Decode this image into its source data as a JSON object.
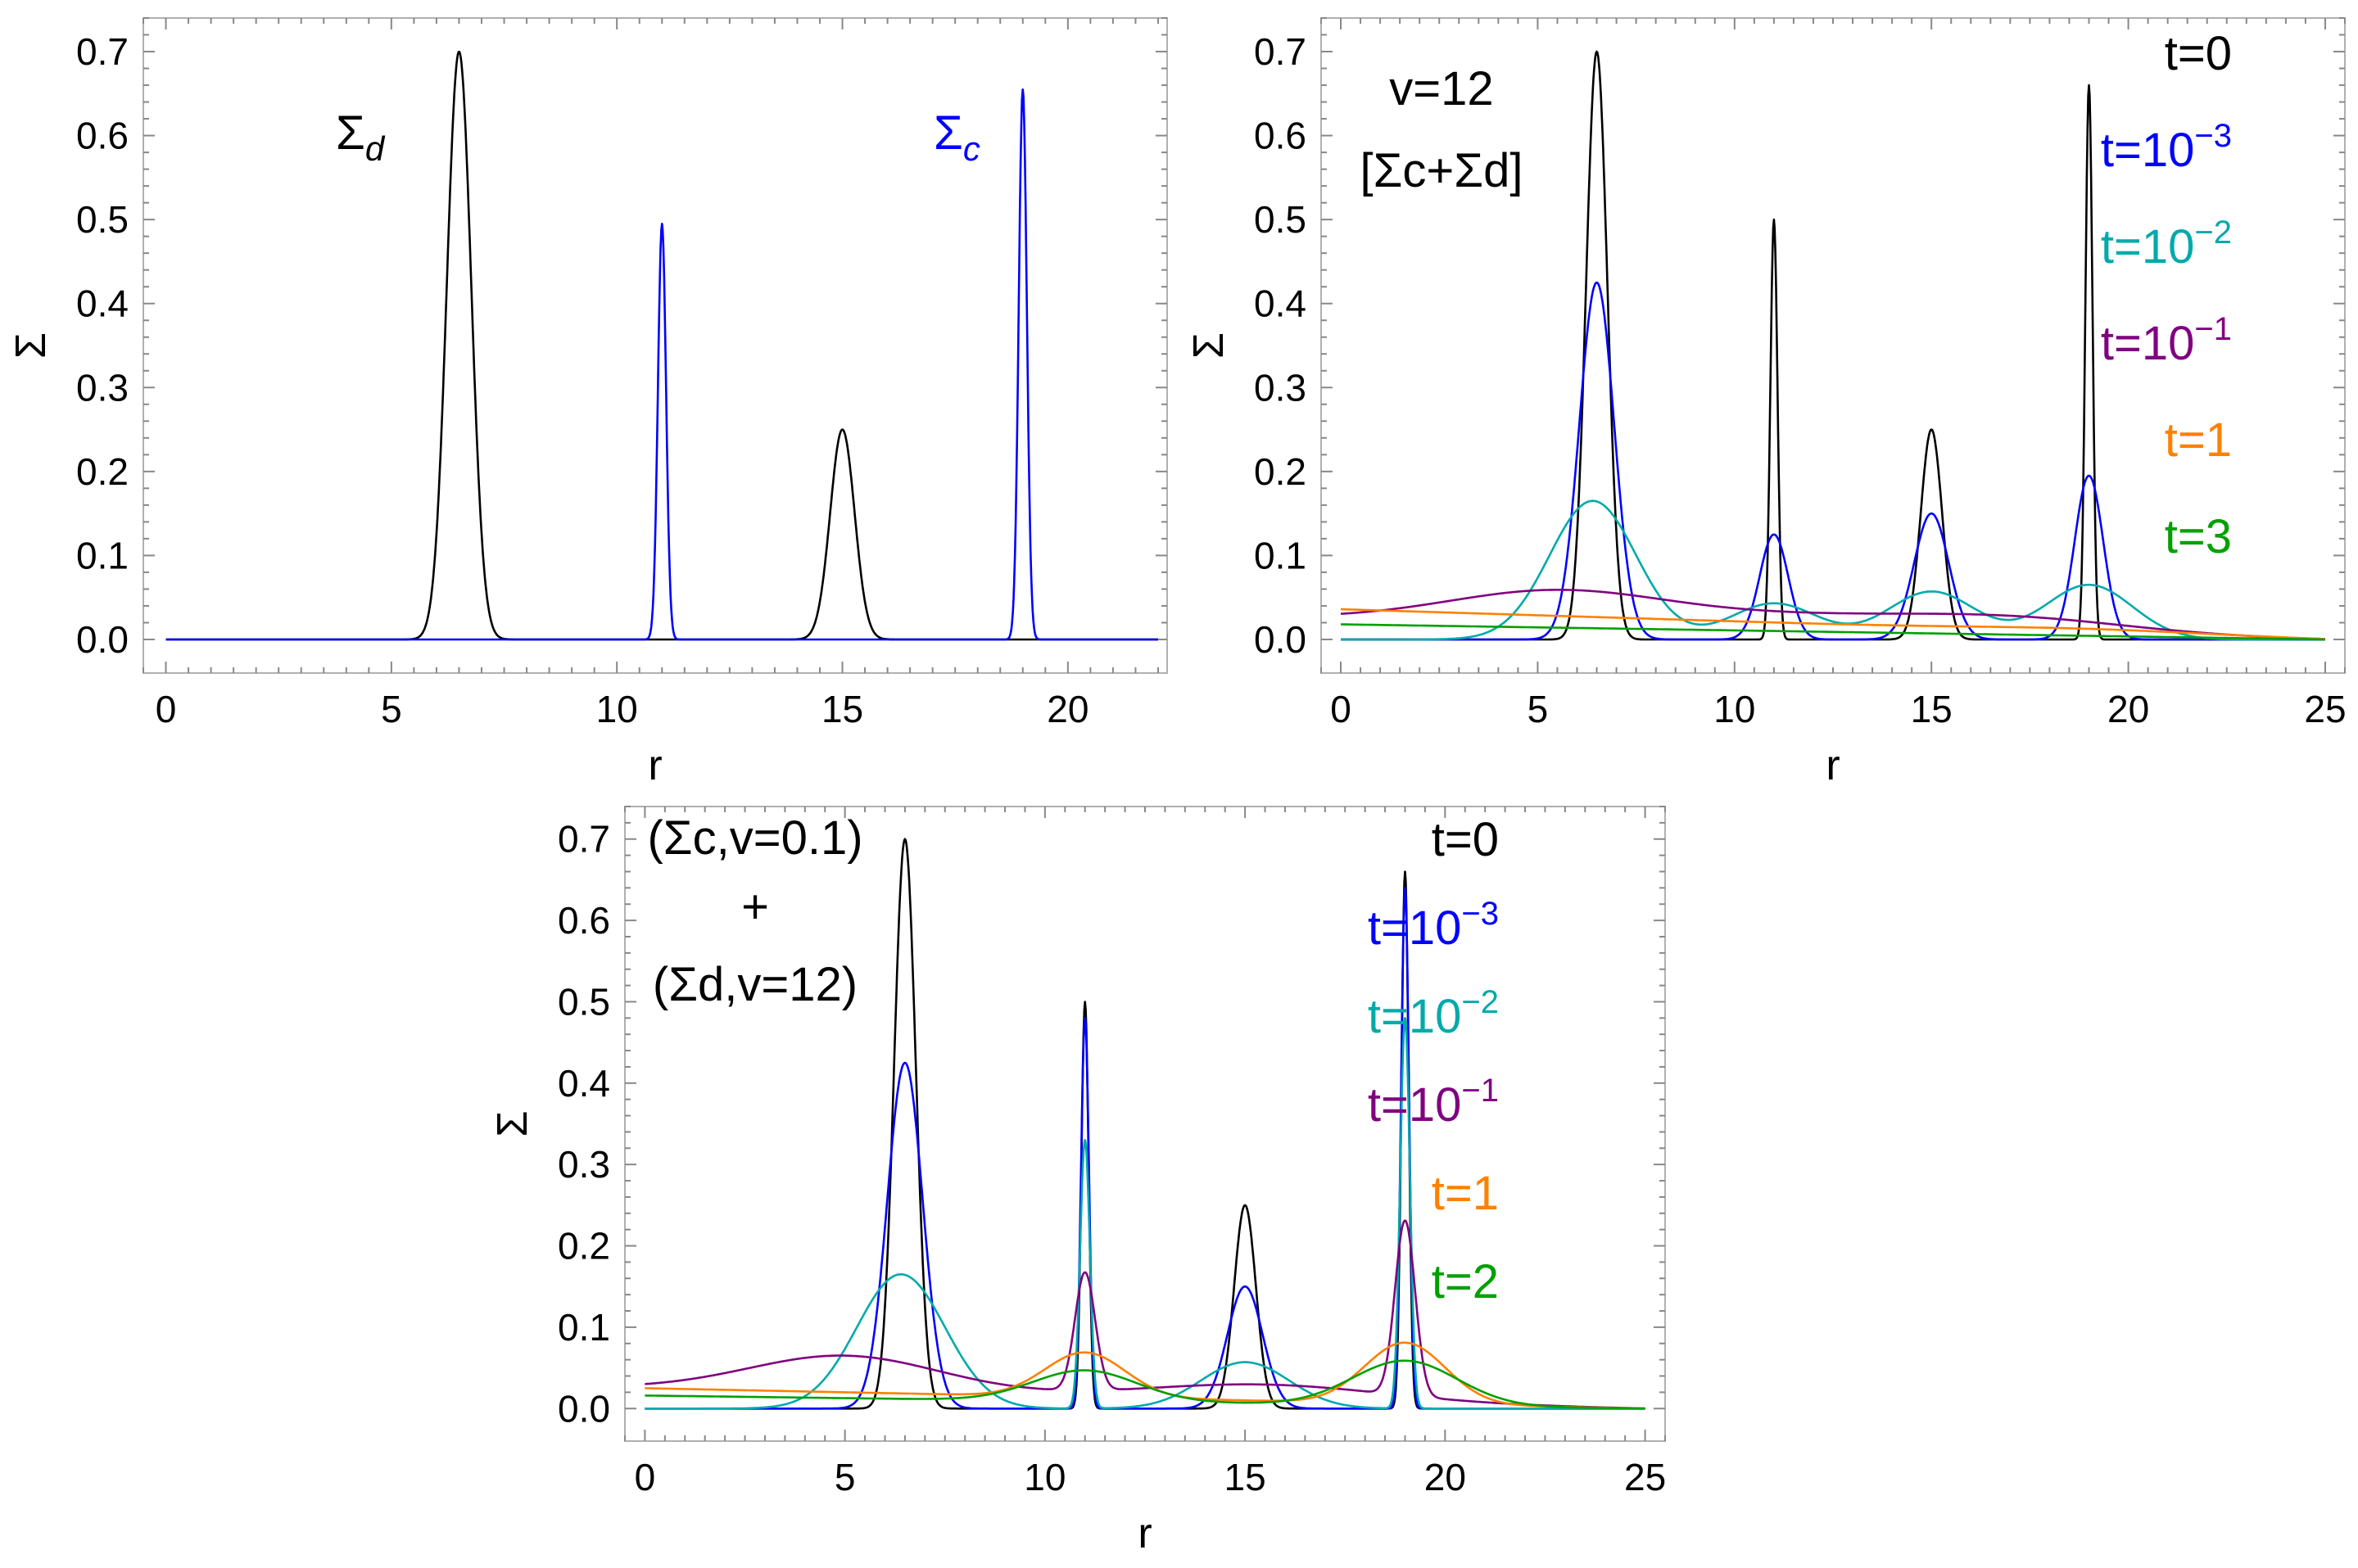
{
  "chart_data": [
    {
      "id": "panel-a",
      "type": "line",
      "xlabel": "r",
      "ylabel": "Σ",
      "xlim": [
        -0.5,
        22.2
      ],
      "ylim": [
        -0.04,
        0.74
      ],
      "xticks": [
        0,
        5,
        10,
        15,
        20
      ],
      "yticks": [
        0.0,
        0.1,
        0.2,
        0.3,
        0.4,
        0.5,
        0.6,
        0.7
      ],
      "grid": false,
      "annotations": [
        {
          "base": "Σ",
          "sub": "d",
          "color": "#000000"
        },
        {
          "base": "Σ",
          "sub": "c",
          "color": "#0000ff"
        }
      ],
      "series": [
        {
          "name": "Σd",
          "color": "#000000",
          "x_range": [
            0,
            22
          ],
          "peaks": [
            {
              "center": 6.5,
              "height": 0.7,
              "width": 0.27
            },
            {
              "center": 15.0,
              "height": 0.25,
              "width": 0.27
            }
          ]
        },
        {
          "name": "Σc",
          "color": "#0000ff",
          "x_range": [
            0,
            22
          ],
          "peaks": [
            {
              "center": 11.0,
              "height": 0.495,
              "width": 0.09
            },
            {
              "center": 19.0,
              "height": 0.655,
              "width": 0.09
            }
          ]
        }
      ]
    },
    {
      "id": "panel-b",
      "type": "line",
      "xlabel": "r",
      "ylabel": "Σ",
      "xlim": [
        -0.5,
        25.5
      ],
      "ylim": [
        -0.04,
        0.74
      ],
      "xticks": [
        0,
        5,
        10,
        15,
        20,
        25
      ],
      "yticks": [
        0.0,
        0.1,
        0.2,
        0.3,
        0.4,
        0.5,
        0.6,
        0.7
      ],
      "grid": false,
      "annotation_lines": [
        "v=12",
        "[Σc+Σd]"
      ],
      "legend": [
        {
          "label": "t=0",
          "sup": "",
          "color": "#000000"
        },
        {
          "label": "t=10",
          "sup": "−3",
          "color": "#0000ff"
        },
        {
          "label": "t=10",
          "sup": "−2",
          "color": "#00aaaa"
        },
        {
          "label": "t=10",
          "sup": "−1",
          "color": "#800080"
        },
        {
          "label": "t=1",
          "sup": "",
          "color": "#ff8000"
        },
        {
          "label": "t=3",
          "sup": "",
          "color": "#00a000"
        }
      ],
      "series": [
        {
          "name": "t=0",
          "color": "#000000",
          "x_range": [
            0,
            25
          ],
          "peaks": [
            {
              "center": 6.5,
              "height": 0.7,
              "width": 0.27
            },
            {
              "center": 11.0,
              "height": 0.5,
              "width": 0.09
            },
            {
              "center": 15.0,
              "height": 0.25,
              "width": 0.27
            },
            {
              "center": 19.0,
              "height": 0.66,
              "width": 0.09
            }
          ]
        },
        {
          "name": "t=10^-3",
          "color": "#0000ff",
          "x_range": [
            0,
            25
          ],
          "peaks": [
            {
              "center": 6.5,
              "height": 0.425,
              "width": 0.44
            },
            {
              "center": 11.0,
              "height": 0.125,
              "width": 0.36
            },
            {
              "center": 15.0,
              "height": 0.15,
              "width": 0.44
            },
            {
              "center": 19.0,
              "height": 0.195,
              "width": 0.36
            }
          ]
        },
        {
          "name": "t=10^-2",
          "color": "#00aaaa",
          "x_range": [
            0,
            25
          ],
          "peaks": [
            {
              "center": 6.4,
              "height": 0.165,
              "width": 1.1
            },
            {
              "center": 11.0,
              "height": 0.043,
              "width": 1.1
            },
            {
              "center": 15.0,
              "height": 0.057,
              "width": 1.1
            },
            {
              "center": 19.0,
              "height": 0.065,
              "width": 1.1
            }
          ]
        },
        {
          "name": "t=10^-1",
          "color": "#800080",
          "x_range": [
            0,
            25
          ],
          "edge": 0.025,
          "peaks": [
            {
              "center": 5.5,
              "height": 0.038,
              "width": 2.8
            },
            {
              "center": 11.5,
              "height": 0.012,
              "width": 3.0
            },
            {
              "center": 17.0,
              "height": 0.018,
              "width": 3.0
            }
          ]
        },
        {
          "name": "t=1",
          "color": "#ff8000",
          "x_range": [
            0,
            25
          ],
          "edge": 0.036,
          "peaks": [
            {
              "center": 19.0,
              "height": 0.004,
              "width": 3.0
            }
          ]
        },
        {
          "name": "t=3",
          "color": "#00a000",
          "x_range": [
            0,
            25
          ],
          "edge": 0.018,
          "peaks": []
        }
      ]
    },
    {
      "id": "panel-c",
      "type": "line",
      "xlabel": "r",
      "ylabel": "Σ",
      "xlim": [
        -0.5,
        25.5
      ],
      "ylim": [
        -0.04,
        0.74
      ],
      "xticks": [
        0,
        5,
        10,
        15,
        20,
        25
      ],
      "yticks": [
        0.0,
        0.1,
        0.2,
        0.3,
        0.4,
        0.5,
        0.6,
        0.7
      ],
      "grid": false,
      "annotation_lines": [
        "(Σc,v=0.1)",
        "+",
        "(Σd,v=12)"
      ],
      "legend": [
        {
          "label": "t=0",
          "sup": "",
          "color": "#000000"
        },
        {
          "label": "t=10",
          "sup": "−3",
          "color": "#0000ff"
        },
        {
          "label": "t=10",
          "sup": "−2",
          "color": "#00aaaa"
        },
        {
          "label": "t=10",
          "sup": "−1",
          "color": "#800080"
        },
        {
          "label": "t=1",
          "sup": "",
          "color": "#ff8000"
        },
        {
          "label": "t=2",
          "sup": "",
          "color": "#00a000"
        }
      ],
      "series": [
        {
          "name": "t=0",
          "color": "#000000",
          "x_range": [
            0,
            25
          ],
          "peaks": [
            {
              "center": 6.5,
              "height": 0.7,
              "width": 0.27
            },
            {
              "center": 11.0,
              "height": 0.5,
              "width": 0.09
            },
            {
              "center": 15.0,
              "height": 0.25,
              "width": 0.27
            },
            {
              "center": 19.0,
              "height": 0.66,
              "width": 0.09
            }
          ]
        },
        {
          "name": "t=10^-3",
          "color": "#0000ff",
          "x_range": [
            0,
            25
          ],
          "peaks": [
            {
              "center": 6.5,
              "height": 0.425,
              "width": 0.44
            },
            {
              "center": 11.0,
              "height": 0.48,
              "width": 0.1
            },
            {
              "center": 15.0,
              "height": 0.15,
              "width": 0.44
            },
            {
              "center": 19.0,
              "height": 0.64,
              "width": 0.1
            }
          ]
        },
        {
          "name": "t=10^-2",
          "color": "#00aaaa",
          "x_range": [
            0,
            25
          ],
          "peaks": [
            {
              "center": 6.4,
              "height": 0.165,
              "width": 1.1
            },
            {
              "center": 11.0,
              "height": 0.33,
              "width": 0.12
            },
            {
              "center": 15.0,
              "height": 0.057,
              "width": 1.1
            },
            {
              "center": 19.0,
              "height": 0.48,
              "width": 0.12
            }
          ]
        },
        {
          "name": "t=10^-1",
          "color": "#800080",
          "x_range": [
            0,
            25
          ],
          "edge": 0.025,
          "peaks": [
            {
              "center": 5.0,
              "height": 0.045,
              "width": 2.4
            },
            {
              "center": 11.0,
              "height": 0.145,
              "width": 0.25
            },
            {
              "center": 15.5,
              "height": 0.02,
              "width": 3.0
            },
            {
              "center": 19.0,
              "height": 0.215,
              "width": 0.25
            }
          ]
        },
        {
          "name": "t=1",
          "color": "#ff8000",
          "x_range": [
            0,
            25
          ],
          "edge": 0.025,
          "peaks": [
            {
              "center": 11.0,
              "height": 0.055,
              "width": 1.0
            },
            {
              "center": 19.0,
              "height": 0.075,
              "width": 1.0
            }
          ]
        },
        {
          "name": "t=2",
          "color": "#00a000",
          "x_range": [
            0,
            25
          ],
          "edge": 0.016,
          "peaks": [
            {
              "center": 11.0,
              "height": 0.038,
              "width": 1.3
            },
            {
              "center": 19.0,
              "height": 0.055,
              "width": 1.3
            }
          ]
        }
      ]
    }
  ]
}
